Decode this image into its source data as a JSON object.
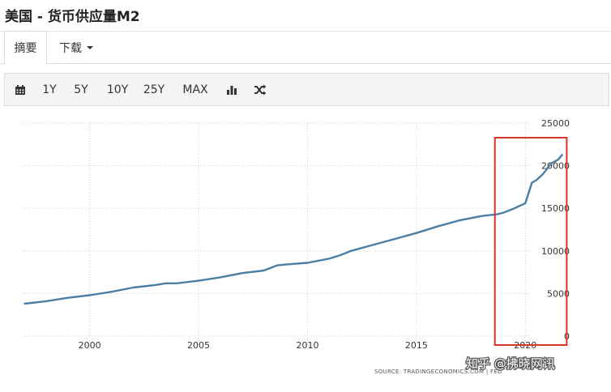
{
  "page": {
    "title": "美国 - 货币供应量M2"
  },
  "tabs": [
    {
      "label": "摘要"
    },
    {
      "label": "下载"
    }
  ],
  "toolbar": {
    "ranges": [
      "1Y",
      "5Y",
      "10Y",
      "25Y",
      "MAX"
    ],
    "icons": [
      "calendar-icon",
      "bar-chart-icon",
      "shuffle-icon"
    ]
  },
  "chart_data": {
    "type": "line",
    "title": "",
    "xlabel": "",
    "ylabel": "",
    "x_ticks": [
      "2000",
      "2005",
      "2010",
      "2015",
      "2020"
    ],
    "y_ticks": [
      "0",
      "5000",
      "10000",
      "15000",
      "20000",
      "25000"
    ],
    "ylim": [
      0,
      25000
    ],
    "xlim": [
      1997.0,
      2021.7
    ],
    "grid": true,
    "y_axis_position": "right",
    "line_color": "#4a7ea5",
    "series": [
      {
        "x": [
          1997.0,
          1998.0,
          1999.0,
          2000.0,
          2001.0,
          2002.0,
          2003.0,
          2003.5,
          2004.0,
          2005.0,
          2006.0,
          2007.0,
          2008.0,
          2008.6,
          2009.0,
          2010.0,
          2011.0,
          2011.5,
          2012.0,
          2013.0,
          2014.0,
          2015.0,
          2016.0,
          2017.0,
          2018.0,
          2018.7,
          2019.0,
          2019.5,
          2020.0,
          2020.15,
          2020.3,
          2020.5,
          2020.8,
          2021.2,
          2021.5,
          2021.7
        ],
        "y": [
          3800,
          4100,
          4500,
          4800,
          5200,
          5700,
          6000,
          6200,
          6200,
          6500,
          6900,
          7400,
          7700,
          8300,
          8400,
          8600,
          9100,
          9500,
          10000,
          10700,
          11400,
          12100,
          12900,
          13600,
          14100,
          14300,
          14500,
          15000,
          15600,
          16800,
          18000,
          18300,
          19000,
          20300,
          20700,
          21300
        ]
      }
    ],
    "annotation": "SOURCE: TRADINGECONOMICS.COM | FED",
    "highlight": {
      "x_range": [
        2018.6,
        2021.9
      ],
      "color": "#d9332a"
    }
  },
  "watermark": "知乎 @拂晓网讯"
}
